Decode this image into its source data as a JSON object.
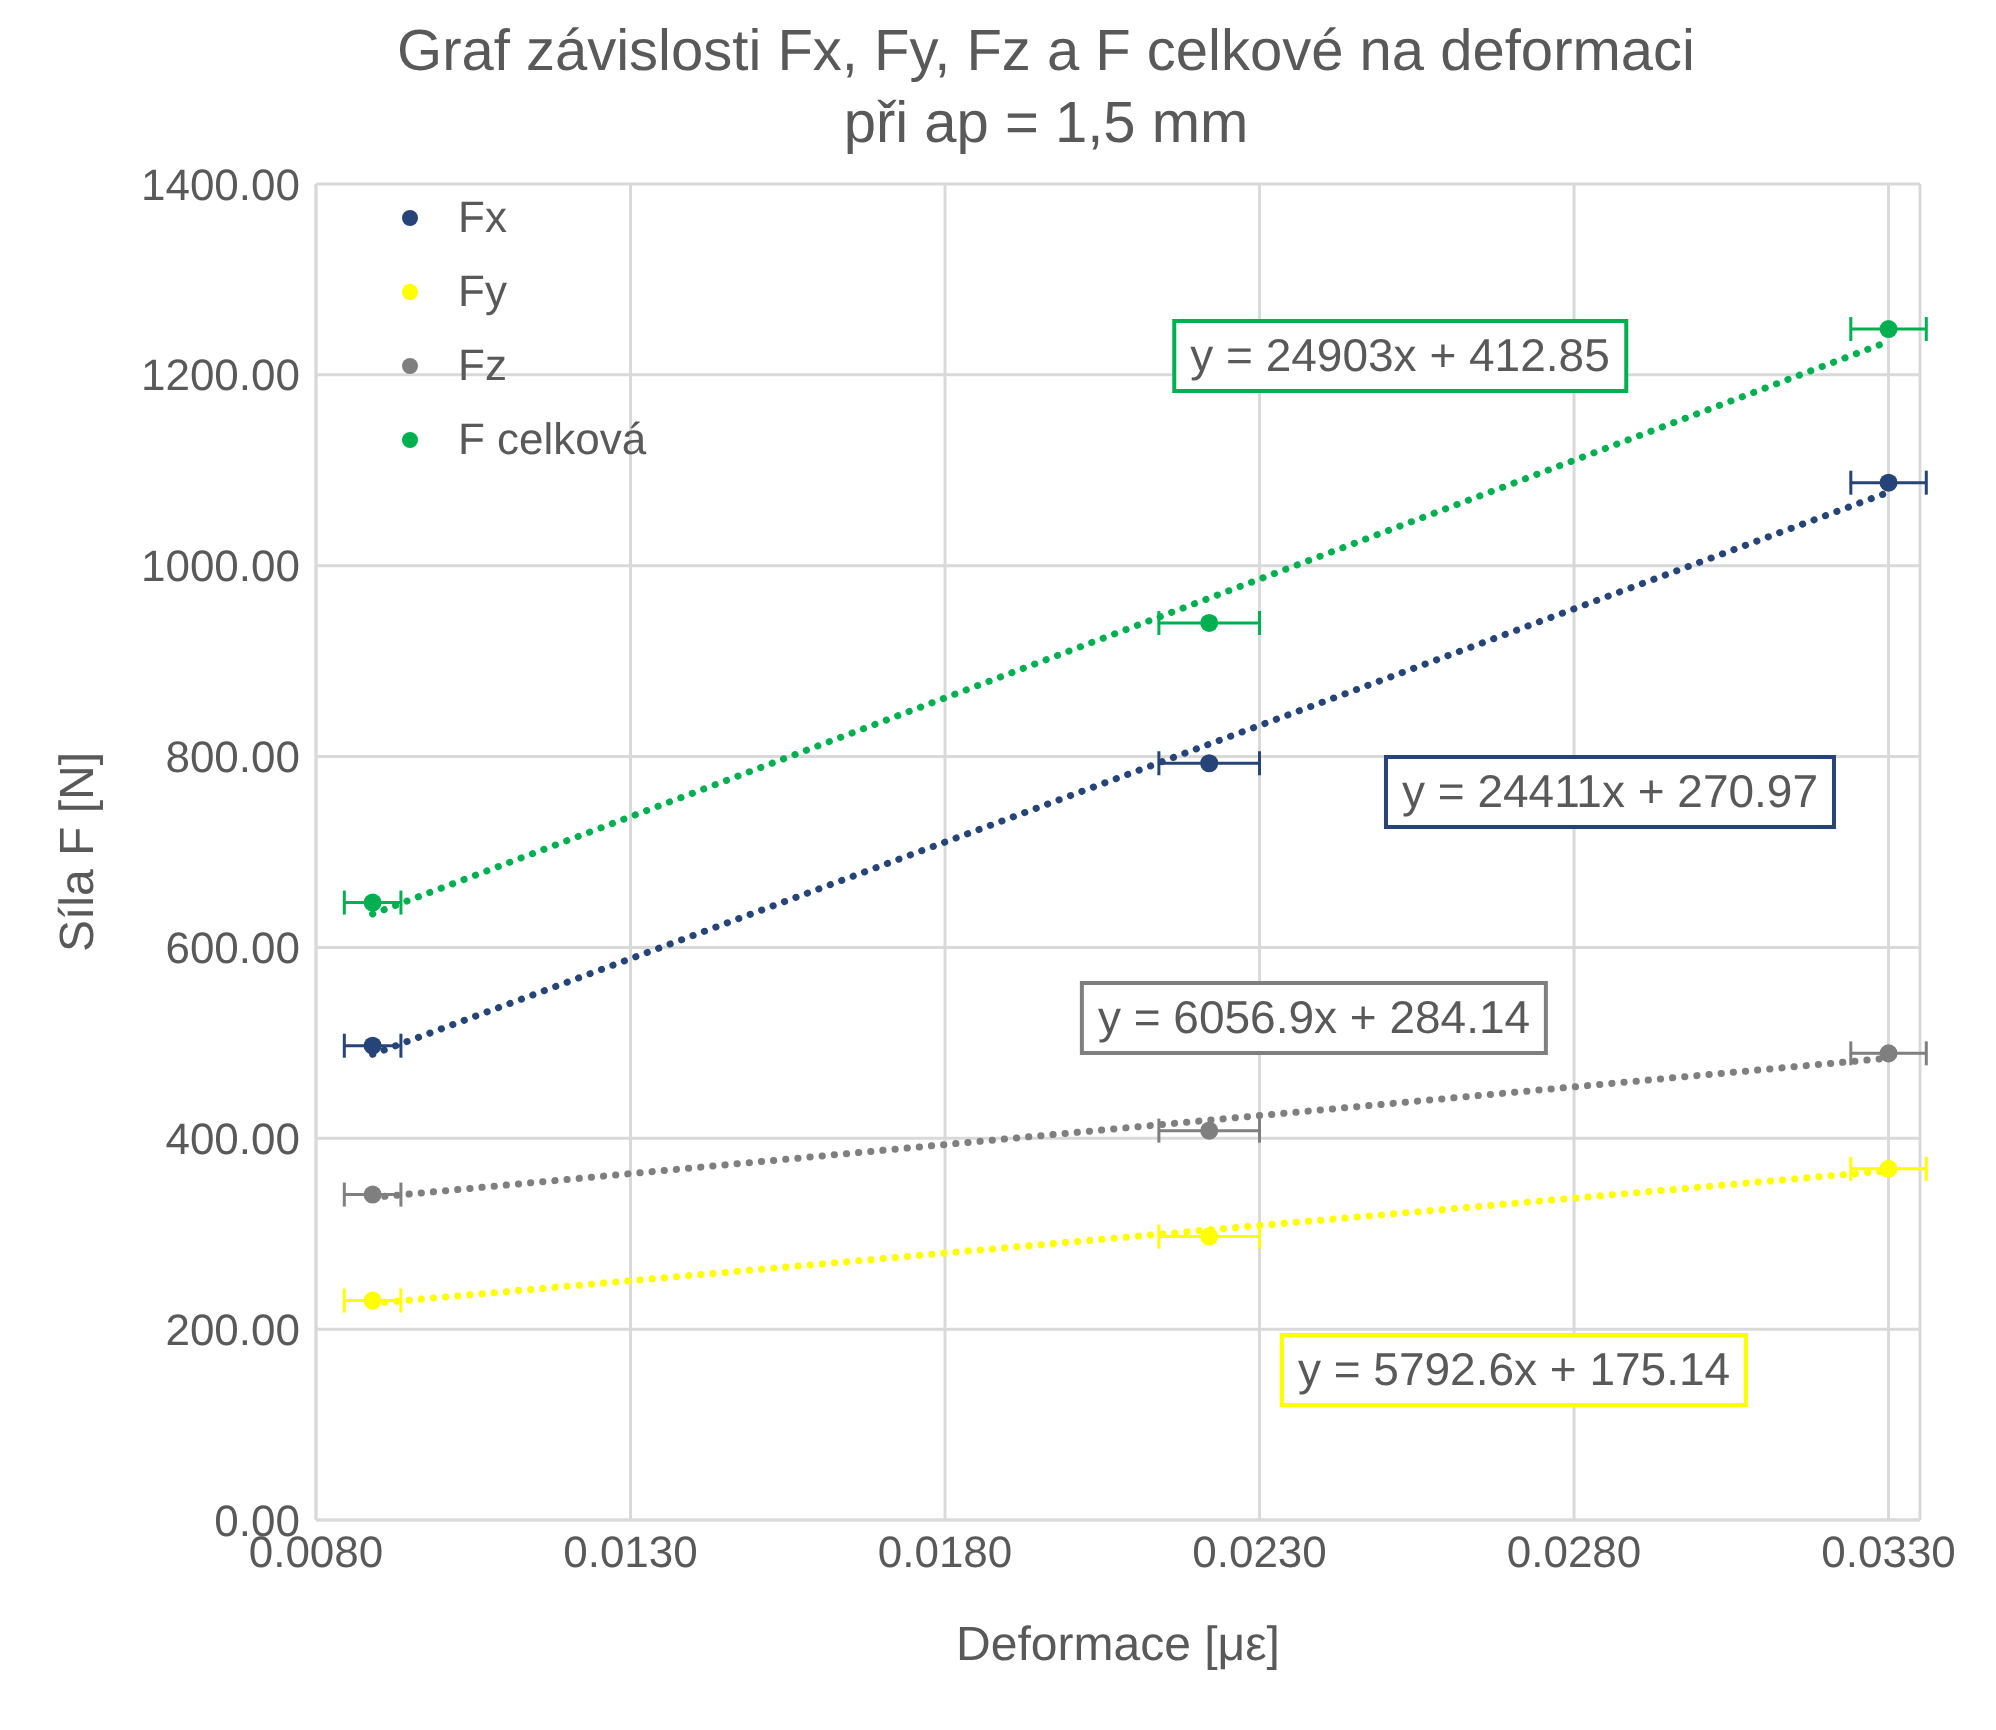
{
  "chart_data": {
    "type": "scatter",
    "title": "Graf závislosti Fx, Fy, Fz a F celkové na deformaci",
    "subtitle": "při ap = 1,5 mm",
    "xlabel": "Deformace [με]",
    "ylabel": "Síla F [N]",
    "x": [
      0.0089,
      0.0222,
      0.033
    ],
    "series": [
      {
        "name": "Fx",
        "color": "#264478",
        "values": [
          497,
          793,
          1087
        ],
        "xerrors": [
          0.00045,
          0.0008,
          0.0006
        ]
      },
      {
        "name": "Fy",
        "color": "#ffff00",
        "values": [
          230,
          297,
          368
        ],
        "xerrors": [
          0.00045,
          0.0008,
          0.0006
        ]
      },
      {
        "name": "Fz",
        "color": "#7f7f7f",
        "values": [
          341,
          408,
          489
        ],
        "xerrors": [
          0.00045,
          0.0008,
          0.0006
        ]
      },
      {
        "name": "F celková",
        "color": "#00b050",
        "values": [
          647,
          940,
          1248
        ],
        "xerrors": [
          0.00045,
          0.0008,
          0.0006
        ]
      },
      {
        "type": "line",
        "color": "#264478",
        "values": [
          488,
          813,
          1077
        ],
        "line_style": "dotted",
        "marker": "none"
      },
      {
        "type": "line",
        "color": "#ffff00",
        "values": [
          227,
          304,
          366
        ],
        "line_style": "dotted",
        "marker": "none"
      },
      {
        "type": "line",
        "color": "#7f7f7f",
        "values": [
          338,
          419,
          484
        ],
        "line_style": "dotted",
        "marker": "none"
      },
      {
        "type": "line",
        "color": "#00b050",
        "values": [
          635,
          966,
          1235
        ],
        "line_style": "dotted",
        "marker": "none"
      }
    ],
    "annotations": [
      "y = 24411x + 270.97",
      "y = 5792.6x + 175.14",
      "y = 6056.9x + 284.14",
      "y = 24903x + 412.85"
    ],
    "xlim": [
      0.008,
      0.0335
    ],
    "xticks": [
      {
        "value": 0.008,
        "label": "0.0080"
      },
      {
        "value": 0.013,
        "label": "0.0130"
      },
      {
        "value": 0.018,
        "label": "0.0180"
      },
      {
        "value": 0.023,
        "label": "0.0230"
      },
      {
        "value": 0.028,
        "label": "0.0280"
      },
      {
        "value": 0.033,
        "label": "0.0330"
      }
    ],
    "ylim": [
      0,
      1400
    ],
    "yticks": [
      {
        "value": 0,
        "label": "0.00"
      },
      {
        "value": 200,
        "label": "200.00"
      },
      {
        "value": 400,
        "label": "400.00"
      },
      {
        "value": 600,
        "label": "600.00"
      },
      {
        "value": 800,
        "label": "800.00"
      },
      {
        "value": 1000,
        "label": "1000.00"
      },
      {
        "value": 1200,
        "label": "1200.00"
      },
      {
        "value": 1400,
        "label": "1400.00"
      }
    ],
    "grid": true,
    "legend": "top left",
    "marker": "circle"
  }
}
